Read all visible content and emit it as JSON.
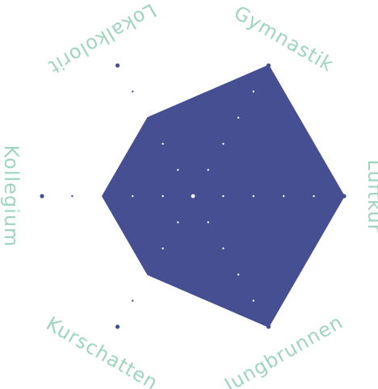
{
  "chart_data": {
    "type": "radar",
    "title": "",
    "axes": [
      "Gymnastik",
      "Luftkur",
      "Jungbrunnen",
      "Kurschatten",
      "Kollegium",
      "Lokalkolorit"
    ],
    "series": [
      {
        "values": [
          5,
          5,
          5,
          3,
          3,
          3
        ]
      }
    ],
    "rlim": [
      0,
      5
    ],
    "ring_steps": 5,
    "grid": "dots",
    "legend": "none",
    "colors": {
      "area": "#454f92",
      "grid_dot_outside": "#454f92",
      "grid_dot_inside": "#ffffff",
      "axis_label": "#9fd5bf",
      "background": "#ffffff"
    }
  }
}
